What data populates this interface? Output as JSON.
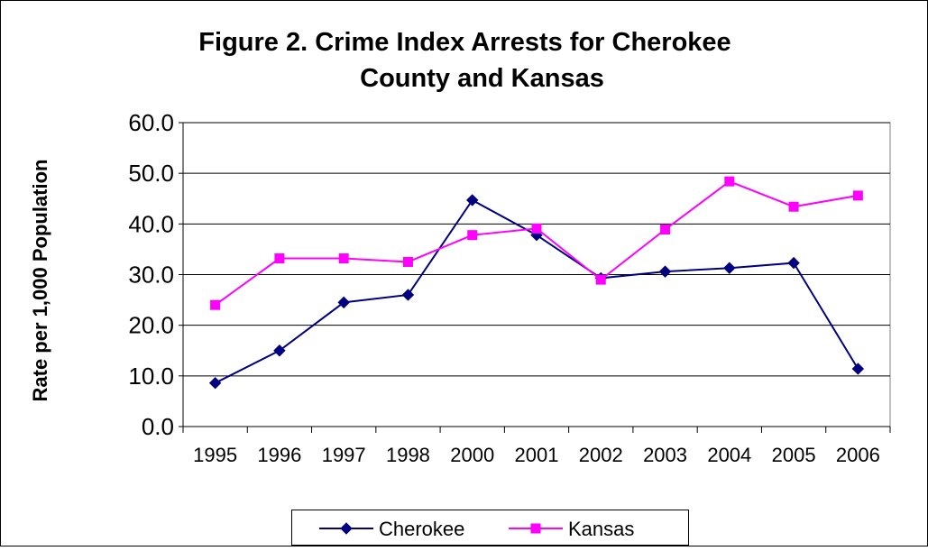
{
  "chart_data": {
    "type": "line",
    "title": "Figure 2. Crime Index Arrests for Cherokee County and Kansas",
    "title_lines": [
      "Figure 2. Crime Index Arrests for Cherokee",
      "County and Kansas"
    ],
    "xlabel": "",
    "ylabel": "Rate per 1,000 Population",
    "categories": [
      "1995",
      "1996",
      "1997",
      "1998",
      "2000",
      "2001",
      "2002",
      "2003",
      "2004",
      "2005",
      "2006"
    ],
    "ylim": [
      0,
      60
    ],
    "yticks": [
      "0.0",
      "10.0",
      "20.0",
      "30.0",
      "40.0",
      "50.0",
      "60.0"
    ],
    "grid": "horizontal",
    "legend_position": "bottom",
    "series": [
      {
        "name": "Cherokee",
        "color": "#000080",
        "marker": "diamond",
        "values": [
          8.6,
          15.0,
          24.5,
          26.0,
          44.7,
          37.8,
          29.3,
          30.6,
          31.3,
          32.3,
          11.4
        ]
      },
      {
        "name": "Kansas",
        "color": "#FF00FF",
        "marker": "square",
        "values": [
          24.0,
          33.2,
          33.2,
          32.5,
          37.8,
          39.1,
          29.0,
          38.9,
          48.4,
          43.4,
          45.6
        ]
      }
    ]
  }
}
